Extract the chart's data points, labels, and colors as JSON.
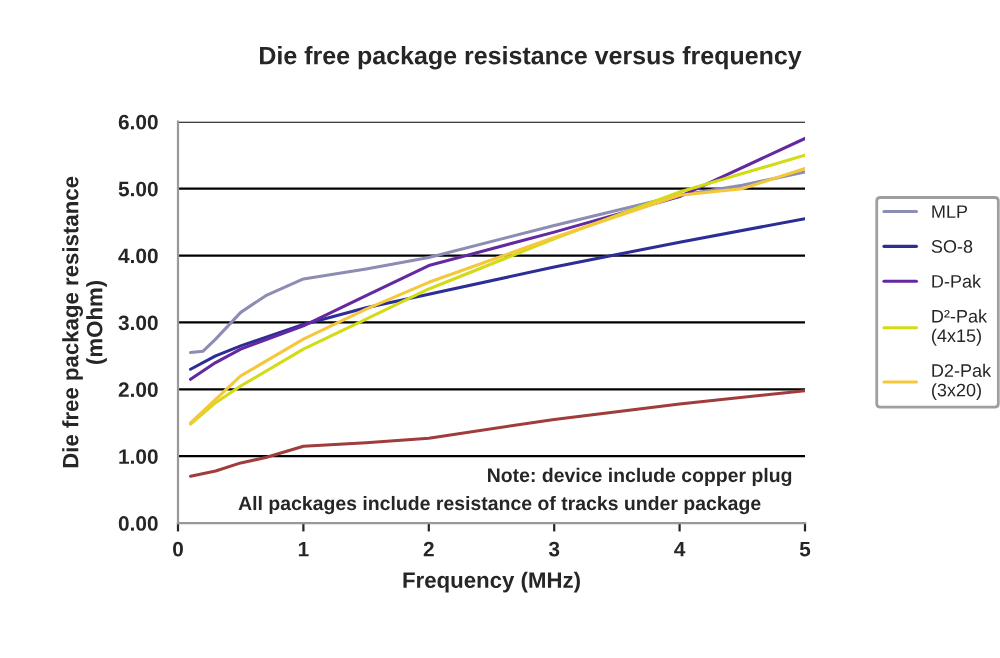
{
  "chart_data": {
    "type": "line",
    "title": "Die free package resistance versus frequency",
    "xlabel": "Frequency (MHz)",
    "ylabel": "Die free package resistance\n(mOhm)",
    "series": [
      {
        "color": "#a03c3c",
        "x": [
          0.1,
          0.3,
          0.5,
          0.7,
          1,
          1.5,
          2,
          3,
          4,
          5
        ],
        "values": [
          0.7,
          0.78,
          0.9,
          0.98,
          1.15,
          1.2,
          1.27,
          1.55,
          1.78,
          1.98
        ]
      },
      {
        "name": "MLP",
        "color": "#8c8cb4",
        "x": [
          0.1,
          0.2,
          0.3,
          0.5,
          0.7,
          1,
          1.5,
          2,
          3,
          4,
          4.5,
          5
        ],
        "values": [
          2.55,
          2.57,
          2.75,
          3.15,
          3.4,
          3.65,
          3.8,
          3.97,
          4.45,
          4.9,
          5.05,
          5.25
        ]
      },
      {
        "name": "SO-8",
        "color": "#2d2d96",
        "x": [
          0.1,
          0.3,
          0.5,
          1,
          1.5,
          2,
          3,
          4,
          5
        ],
        "values": [
          2.3,
          2.5,
          2.65,
          2.97,
          3.22,
          3.42,
          3.83,
          4.2,
          4.55
        ]
      },
      {
        "name": "D-Pak",
        "color": "#6428a0",
        "x": [
          0.1,
          0.3,
          0.5,
          1,
          1.5,
          2,
          3,
          4,
          5
        ],
        "values": [
          2.15,
          2.4,
          2.6,
          2.95,
          3.4,
          3.85,
          4.35,
          4.88,
          5.75
        ]
      },
      {
        "name": "D²-Pak\n(4x15)",
        "color": "#d2dc14",
        "x": [
          0.1,
          0.3,
          0.5,
          1,
          1.5,
          2,
          3,
          4,
          5
        ],
        "values": [
          1.48,
          1.8,
          2.05,
          2.6,
          3.05,
          3.5,
          4.25,
          4.95,
          5.5
        ]
      },
      {
        "name": "D2-Pak\n(3x20)",
        "color": "#f5c83c",
        "x": [
          0.1,
          0.3,
          0.5,
          1,
          1.5,
          2,
          3,
          4,
          4.5,
          5
        ],
        "values": [
          1.5,
          1.85,
          2.2,
          2.75,
          3.2,
          3.6,
          4.27,
          4.9,
          5.0,
          5.3
        ]
      }
    ],
    "xlim": [
      0,
      5
    ],
    "xticks": [
      0,
      1,
      2,
      3,
      4,
      5
    ],
    "ylim": [
      0,
      6
    ],
    "yticks": [
      {
        "value": 0,
        "label": "0.00"
      },
      {
        "value": 1,
        "label": "1.00"
      },
      {
        "value": 2,
        "label": "2.00"
      },
      {
        "value": 3,
        "label": "3.00"
      },
      {
        "value": 4,
        "label": "4.00"
      },
      {
        "value": 5,
        "label": "5.00"
      },
      {
        "value": 6,
        "label": "6.00"
      }
    ],
    "grid": "y",
    "legend": "right",
    "marker": "none",
    "line_style": "solid",
    "annotations": [
      "Note: device include copper plug",
      "All packages include resistance of tracks under package"
    ]
  }
}
